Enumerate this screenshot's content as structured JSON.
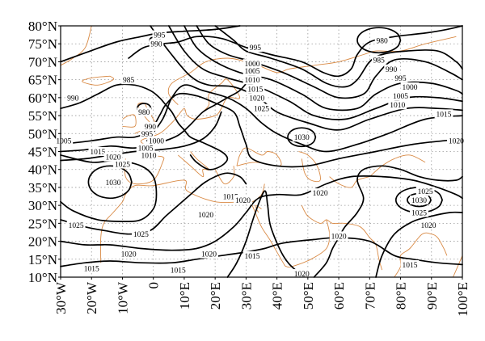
{
  "map": {
    "lon_range": [
      -30,
      100
    ],
    "lat_range": [
      10,
      80
    ],
    "grid": true,
    "colors": {
      "contour": "#000000",
      "coastline": "#d98a45",
      "grid": "#9a9a9a",
      "frame": "#000000"
    },
    "lat_labels": [
      "10°N",
      "15°N",
      "20°N",
      "25°N",
      "30°N",
      "35°N",
      "40°N",
      "45°N",
      "50°N",
      "55°N",
      "60°N",
      "65°N",
      "70°N",
      "75°N",
      "80°N"
    ],
    "lon_labels": [
      "30°W",
      "20°W",
      "10°W",
      "0",
      "10°E",
      "20°E",
      "30°E",
      "40°E",
      "50°E",
      "60°E",
      "70°E",
      "80°E",
      "90°E",
      "100°E"
    ],
    "contour_labels": [
      {
        "text": "995",
        "lon": 2,
        "lat": 77.5
      },
      {
        "text": "990",
        "lon": 1,
        "lat": 75
      },
      {
        "text": "980",
        "lon": 74,
        "lat": 76
      },
      {
        "text": "995",
        "lon": 33,
        "lat": 74
      },
      {
        "text": "1000",
        "lon": 32,
        "lat": 69.5
      },
      {
        "text": "1005",
        "lon": 32,
        "lat": 67.5
      },
      {
        "text": "1010",
        "lon": 32,
        "lat": 65
      },
      {
        "text": "1015",
        "lon": 33,
        "lat": 62.5
      },
      {
        "text": "1020",
        "lon": 33.5,
        "lat": 60
      },
      {
        "text": "1025",
        "lon": 35,
        "lat": 57
      },
      {
        "text": "985",
        "lon": 73,
        "lat": 70.5
      },
      {
        "text": "990",
        "lon": 77,
        "lat": 68
      },
      {
        "text": "995",
        "lon": 80,
        "lat": 65.5
      },
      {
        "text": "1000",
        "lon": 83,
        "lat": 63
      },
      {
        "text": "1005",
        "lon": 80,
        "lat": 60.5
      },
      {
        "text": "1010",
        "lon": 79,
        "lat": 58
      },
      {
        "text": "1015",
        "lon": 94,
        "lat": 55.5
      },
      {
        "text": "1020",
        "lon": 98,
        "lat": 48
      },
      {
        "text": "985",
        "lon": -8,
        "lat": 65
      },
      {
        "text": "990",
        "lon": -26,
        "lat": 60
      },
      {
        "text": "980",
        "lon": -3,
        "lat": 56
      },
      {
        "text": "990",
        "lon": -1,
        "lat": 52
      },
      {
        "text": "995",
        "lon": -2,
        "lat": 50
      },
      {
        "text": "1000",
        "lon": 1,
        "lat": 48
      },
      {
        "text": "1005",
        "lon": -2.5,
        "lat": 46
      },
      {
        "text": "1010",
        "lon": -1.5,
        "lat": 44
      },
      {
        "text": "1005",
        "lon": -29,
        "lat": 48
      },
      {
        "text": "1015",
        "lon": -18,
        "lat": 45
      },
      {
        "text": "1020",
        "lon": -13,
        "lat": 43.5
      },
      {
        "text": "1025",
        "lon": -10,
        "lat": 41.5
      },
      {
        "text": "1030",
        "lon": -13,
        "lat": 36.5
      },
      {
        "text": "1030",
        "lon": 48,
        "lat": 49
      },
      {
        "text": "1020",
        "lon": 54,
        "lat": 33.5
      },
      {
        "text": "1015",
        "lon": 25,
        "lat": 32.5
      },
      {
        "text": "1020",
        "lon": 29,
        "lat": 31.5
      },
      {
        "text": "1020",
        "lon": 17,
        "lat": 27.5
      },
      {
        "text": "1025",
        "lon": -25,
        "lat": 24.5
      },
      {
        "text": "1025",
        "lon": -4,
        "lat": 22
      },
      {
        "text": "1020",
        "lon": -8,
        "lat": 16.5
      },
      {
        "text": "1020",
        "lon": 18,
        "lat": 16.5
      },
      {
        "text": "1015",
        "lon": 32,
        "lat": 16
      },
      {
        "text": "1015",
        "lon": -20,
        "lat": 12.5
      },
      {
        "text": "1015",
        "lon": 8,
        "lat": 12
      },
      {
        "text": "1020",
        "lon": 48,
        "lat": 11
      },
      {
        "text": "1020",
        "lon": 60,
        "lat": 21.5
      },
      {
        "text": "1025",
        "lon": 88,
        "lat": 34
      },
      {
        "text": "1030",
        "lon": 86,
        "lat": 31.5
      },
      {
        "text": "1025",
        "lon": 86,
        "lat": 28
      },
      {
        "text": "1020",
        "lon": 89,
        "lat": 24.5
      },
      {
        "text": "1015",
        "lon": 83,
        "lat": 13.5
      }
    ]
  }
}
